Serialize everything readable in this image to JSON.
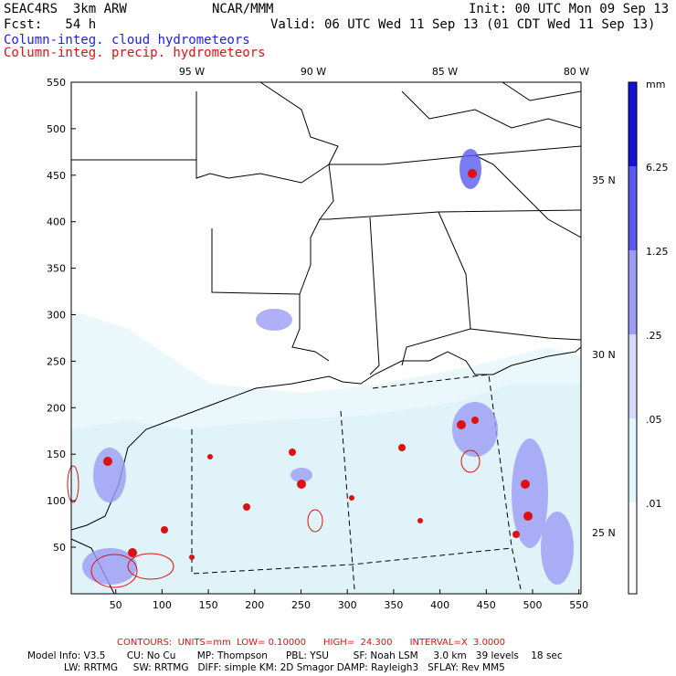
{
  "header": {
    "model": "SEAC4RS  3km ARW",
    "org": "NCAR/MMM",
    "init": "Init: 00 UTC Mon 09 Sep 13",
    "fcst": "Fcst:   54 h",
    "valid": "Valid: 06 UTC Wed 11 Sep 13 (01 CDT Wed 11 Sep 13)",
    "field1": "Column-integ. cloud hydrometeors",
    "field2": "Column-integ. precip. hydrometeors"
  },
  "axes": {
    "x_ticks": [
      "50",
      "100",
      "150",
      "200",
      "250",
      "300",
      "350",
      "400",
      "450",
      "500",
      "550"
    ],
    "y_ticks": [
      "550",
      "500",
      "450",
      "400",
      "350",
      "300",
      "250",
      "200",
      "150",
      "100",
      "50"
    ],
    "lon_labels": [
      "95 W",
      "90 W",
      "85 W",
      "80 W"
    ],
    "lat_labels": [
      "35 N",
      "30 N",
      "25 N"
    ]
  },
  "colorbar": {
    "unit": "mm",
    "labels": [
      "6.25",
      "1.25",
      ".25",
      ".05",
      ".01"
    ],
    "colors": [
      "#1414d8",
      "#5a5af0",
      "#9c9cf6",
      "#d8d8fc",
      "#e0f6fa",
      "#ffffff"
    ]
  },
  "footer": {
    "contours": "CONTOURS:  UNITS=mm  LOW= 0.10000      HIGH=  24.300      INTERVAL=X  3.0000",
    "line1": "Model Info: V3.5       CU: No Cu       MP: Thompson      PBL: YSU        SF: Noah LSM     3.0 km   39 levels    18 sec",
    "line2": "            LW: RRTMG     SW: RRTMG   DIFF: simple KM: 2D Smagor DAMP: Rayleigh3   SFLAY: Rev MM5"
  }
}
